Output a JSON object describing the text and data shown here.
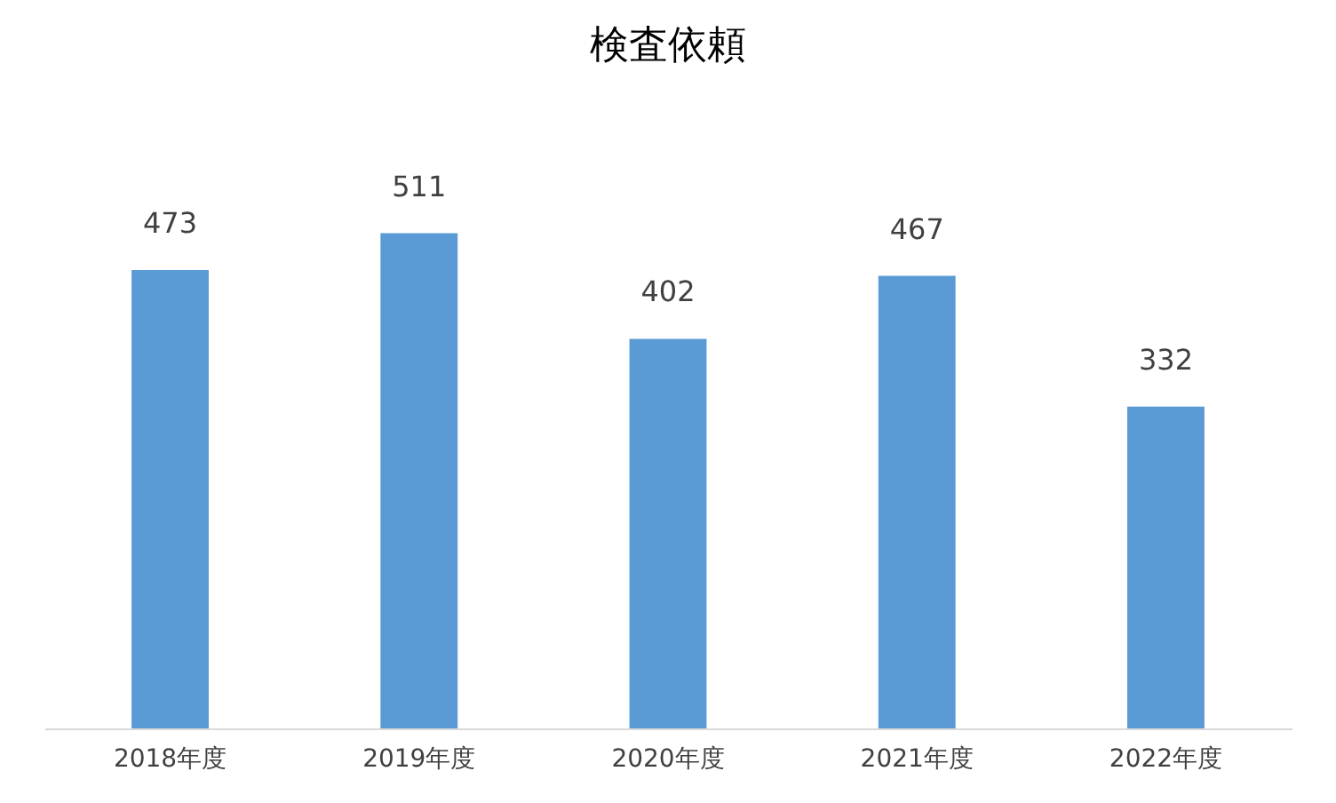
{
  "chart_data": {
    "type": "bar",
    "title": "検査依頼",
    "categories": [
      "2018年度",
      "2019年度",
      "2020年度",
      "2021年度",
      "2022年度"
    ],
    "values": [
      473,
      511,
      402,
      467,
      332
    ],
    "color": "#5b9bd5",
    "data_labels": true,
    "grid": false,
    "tick_labels": "x"
  }
}
